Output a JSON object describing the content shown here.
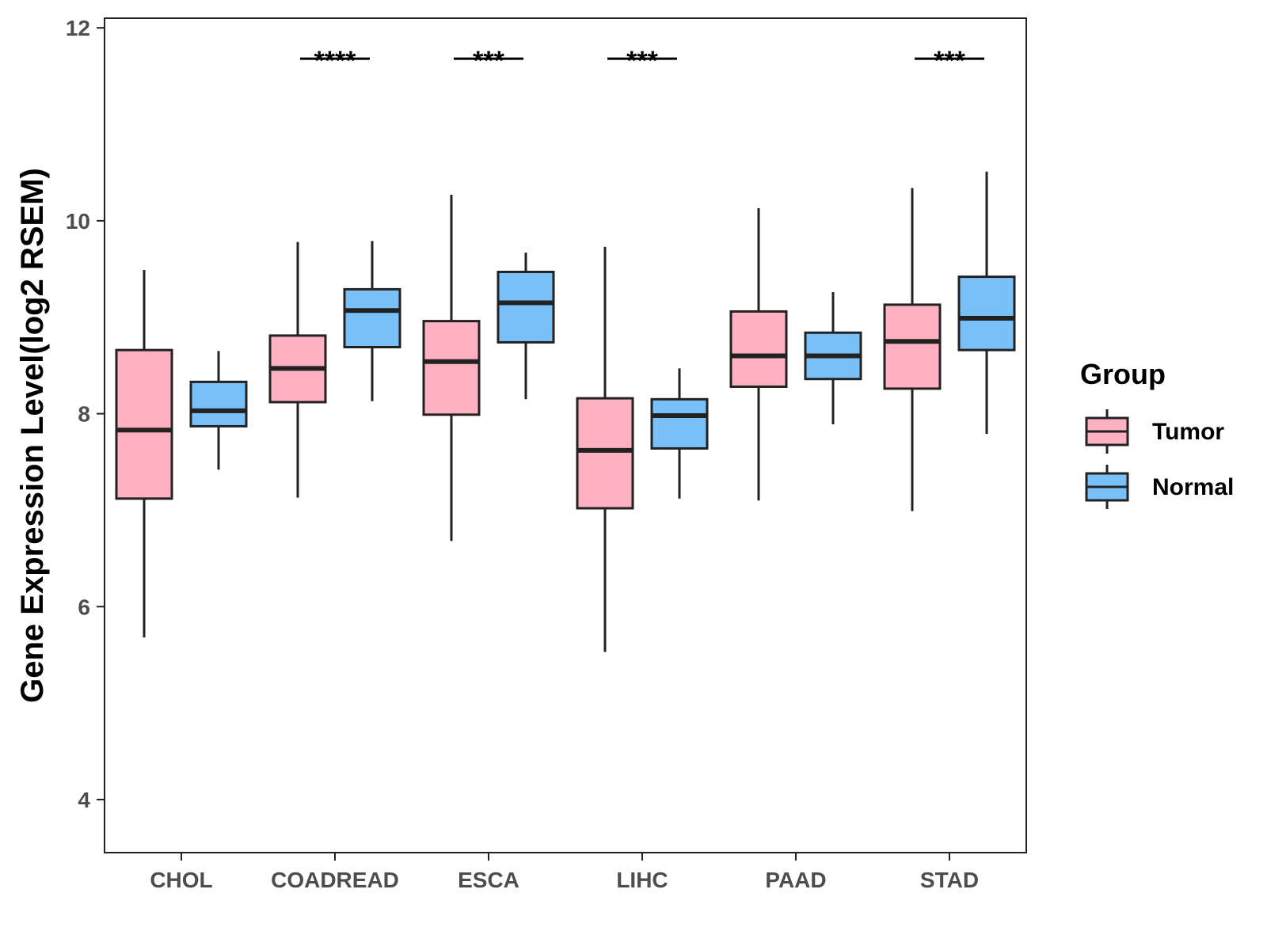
{
  "chart_data": {
    "type": "box",
    "title": "",
    "xlabel": "",
    "ylabel": "Gene Expression Level(log2 RSEM)",
    "ylim": [
      3.45,
      12.1
    ],
    "yticks": [
      4,
      6,
      8,
      10,
      12
    ],
    "ytick_labels": [
      "4",
      "6",
      "8",
      "10",
      "12"
    ],
    "categories": [
      "CHOL",
      "COADREAD",
      "ESCA",
      "LIHC",
      "PAAD",
      "STAD"
    ],
    "grid": false,
    "legend": {
      "title": "Group",
      "position": "right",
      "entries": [
        {
          "name": "Tumor",
          "color": "#FFB1C1"
        },
        {
          "name": "Normal",
          "color": "#79C0F8"
        }
      ]
    },
    "series": [
      {
        "name": "Tumor",
        "color": "#FFB1C1",
        "boxes": [
          {
            "category": "CHOL",
            "min": 5.68,
            "q1": 7.12,
            "median": 7.83,
            "q3": 8.66,
            "max": 9.49
          },
          {
            "category": "COADREAD",
            "min": 7.13,
            "q1": 8.12,
            "median": 8.47,
            "q3": 8.81,
            "max": 9.78
          },
          {
            "category": "ESCA",
            "min": 6.68,
            "q1": 7.99,
            "median": 8.54,
            "q3": 8.96,
            "max": 10.27
          },
          {
            "category": "LIHC",
            "min": 5.53,
            "q1": 7.02,
            "median": 7.62,
            "q3": 8.16,
            "max": 9.73
          },
          {
            "category": "PAAD",
            "min": 7.1,
            "q1": 8.28,
            "median": 8.6,
            "q3": 9.06,
            "max": 10.13
          },
          {
            "category": "STAD",
            "min": 6.99,
            "q1": 8.26,
            "median": 8.75,
            "q3": 9.13,
            "max": 10.34
          }
        ]
      },
      {
        "name": "Normal",
        "color": "#79C0F8",
        "boxes": [
          {
            "category": "CHOL",
            "min": 7.42,
            "q1": 7.87,
            "median": 8.03,
            "q3": 8.33,
            "max": 8.65
          },
          {
            "category": "COADREAD",
            "min": 8.13,
            "q1": 8.69,
            "median": 9.07,
            "q3": 9.29,
            "max": 9.79
          },
          {
            "category": "ESCA",
            "min": 8.15,
            "q1": 8.74,
            "median": 9.15,
            "q3": 9.47,
            "max": 9.67
          },
          {
            "category": "LIHC",
            "min": 7.12,
            "q1": 7.64,
            "median": 7.98,
            "q3": 8.15,
            "max": 8.47
          },
          {
            "category": "PAAD",
            "min": 7.89,
            "q1": 8.36,
            "median": 8.6,
            "q3": 8.84,
            "max": 9.26
          },
          {
            "category": "STAD",
            "min": 7.79,
            "q1": 8.66,
            "median": 8.99,
            "q3": 9.42,
            "max": 10.51
          }
        ]
      }
    ],
    "annotations": [
      {
        "category": "COADREAD",
        "label": "****"
      },
      {
        "category": "ESCA",
        "label": "***"
      },
      {
        "category": "LIHC",
        "label": "***"
      },
      {
        "category": "STAD",
        "label": "***"
      }
    ]
  }
}
